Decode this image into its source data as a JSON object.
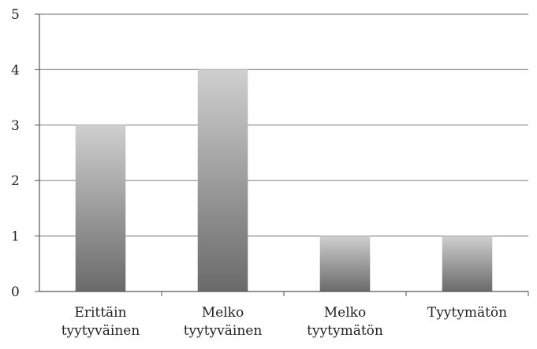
{
  "chart_data": {
    "type": "bar",
    "title": "",
    "xlabel": "",
    "ylabel": "",
    "categories": [
      "Erittäin tyytyväinen",
      "Melko tyytyväinen",
      "Melko tyytymätön",
      "Tyytymätön"
    ],
    "category_label_lines": [
      [
        "Erittäin",
        "tyytyväinen"
      ],
      [
        "Melko",
        "tyytyväinen"
      ],
      [
        "Melko",
        "tyytymätön"
      ],
      [
        "Tyytymätön"
      ]
    ],
    "values": [
      3,
      4,
      1,
      1
    ],
    "ylim": [
      0,
      5
    ],
    "y_ticks": [
      "0",
      "1",
      "2",
      "3",
      "4",
      "5"
    ],
    "grid": true,
    "legend": "none",
    "bar_gradient": {
      "top": "#cfcfcf",
      "bottom": "#6a6a6a"
    },
    "gridline_color": "#8c8c8c",
    "axis_color": "#555555"
  }
}
